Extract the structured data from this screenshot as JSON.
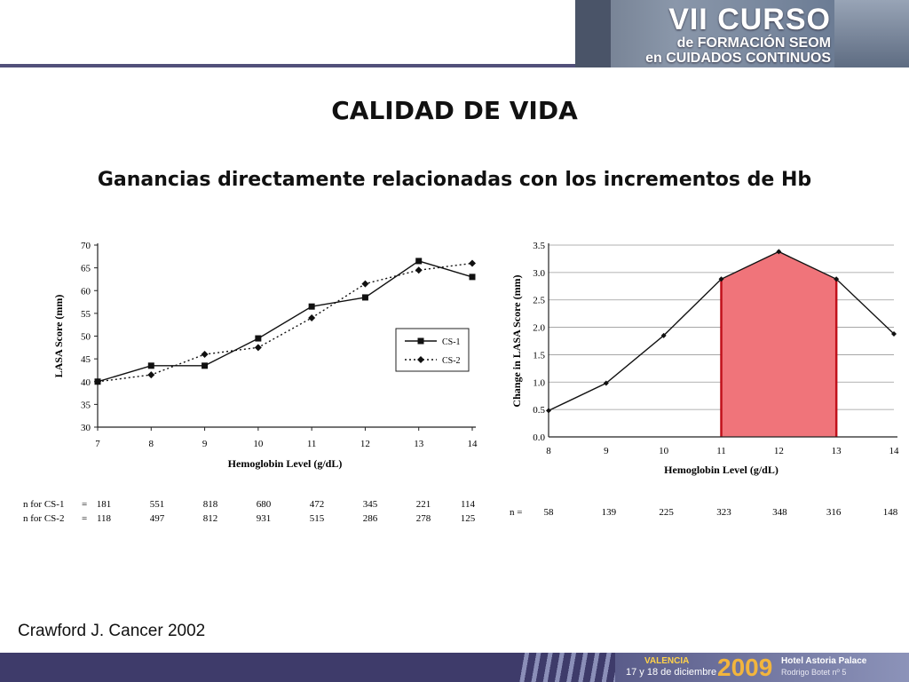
{
  "slide": {
    "title": "CALIDAD DE VIDA",
    "subtitle": "Ganancias directamente relacionadas con los incrementos de Hb",
    "citation": "Crawford J. Cancer 2002"
  },
  "banner": {
    "line1": "VII CURSO",
    "line2": "de FORMACIÓN SEOM",
    "line3": "en CUIDADOS CONTINUOS"
  },
  "footer": {
    "city": "VALENCIA",
    "dates": "17 y 18 de diciembre",
    "year": "2009",
    "hotel": "Hotel Astoria Palace",
    "address": "Rodrigo Botet nº 5"
  },
  "colors": {
    "accent": "#52507a",
    "highlight": "#f0747a",
    "highlight_edge": "#c0101a"
  },
  "chart_data": [
    {
      "type": "line",
      "xlabel": "Hemoglobin Level (g/dL)",
      "ylabel": "LASA Score (mm)",
      "x": [
        7,
        8,
        9,
        10,
        11,
        12,
        13,
        14
      ],
      "ylim": [
        30,
        70
      ],
      "yticks": [
        30,
        35,
        40,
        45,
        50,
        55,
        60,
        65,
        70
      ],
      "series": [
        {
          "name": "CS-1",
          "values": [
            40,
            43.5,
            43.5,
            49.5,
            56.5,
            58.5,
            66.5,
            63
          ],
          "style": "solid-square"
        },
        {
          "name": "CS-2",
          "values": [
            40,
            41.5,
            46,
            47.5,
            54,
            61.5,
            64.5,
            66
          ],
          "style": "dotted-diamond"
        }
      ],
      "legend": "right",
      "n_rows": [
        {
          "label": "n for CS-1",
          "eq": "=",
          "values": [
            "181",
            "551",
            "818",
            "680",
            "472",
            "345",
            "221",
            "114"
          ]
        },
        {
          "label": "n for CS-2",
          "eq": "=",
          "values": [
            "118",
            "497",
            "812",
            "931",
            "515",
            "286",
            "278",
            "125"
          ]
        }
      ]
    },
    {
      "type": "line",
      "xlabel": "Hemoglobin Level (g/dL)",
      "ylabel": "Change in LASA Score (mm)",
      "x": [
        8,
        9,
        10,
        11,
        12,
        13,
        14
      ],
      "ylim": [
        0,
        3.5
      ],
      "yticks": [
        "0.0",
        "0.5",
        "1.0",
        "1.5",
        "2.0",
        "2.5",
        "3.0",
        "3.5"
      ],
      "grid": true,
      "values": [
        0.48,
        0.98,
        1.85,
        2.88,
        3.38,
        2.88,
        1.88
      ],
      "highlight_range": [
        11,
        13
      ],
      "n_label": "n =",
      "n_values": [
        "58",
        "139",
        "225",
        "323",
        "348",
        "316",
        "148"
      ]
    }
  ]
}
